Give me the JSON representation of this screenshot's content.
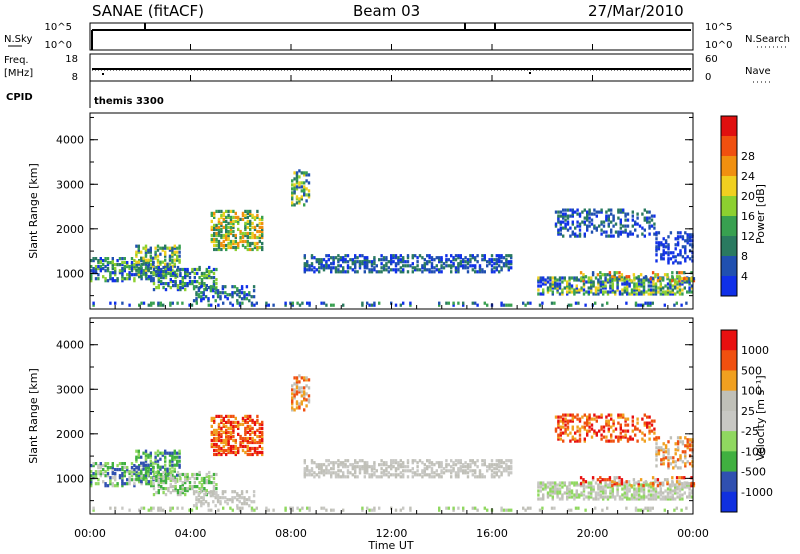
{
  "header": {
    "station": "SANAE (fitACF)",
    "beam": "Beam 03",
    "date": "27/Mar/2010"
  },
  "top_panels": {
    "nsky_label": "N.Sky",
    "nsky_ticks": [
      "10^5",
      "10^0"
    ],
    "nsearch_label": "N.Search",
    "freq_label_1": "Freq.",
    "freq_label_2": "[MHz]",
    "freq_ticks": [
      "18",
      "8"
    ],
    "nave_label": "Nave",
    "nave_ticks": [
      "60",
      "0"
    ],
    "cpid_label": "CPID",
    "cpid_value": "themis 3300"
  },
  "colors": {
    "power_scale": [
      "#1030e8",
      "#2050b0",
      "#2a7a60",
      "#38a050",
      "#8cd030",
      "#f0d020",
      "#f09010",
      "#f05010",
      "#e01010"
    ],
    "velocity_scale": [
      "#e81010",
      "#f05010",
      "#f0a020",
      "#c0c0b8",
      "#c8c8c4",
      "#90d860",
      "#40b040",
      "#3050b0",
      "#1030e0"
    ]
  },
  "chart_data": [
    {
      "type": "heatmap",
      "ylabel": "Slant Range [km]",
      "y_ticks": [
        "1000",
        "2000",
        "3000",
        "4000"
      ],
      "ylim": [
        200,
        4600
      ],
      "colorbar_label": "Power [dB]",
      "colorbar_ticks": [
        "4",
        "8",
        "12",
        "16",
        "20",
        "24",
        "28"
      ],
      "colorbar_range": [
        0,
        30
      ]
    },
    {
      "type": "heatmap",
      "ylabel": "Slant Range [km]",
      "y_ticks": [
        "1000",
        "2000",
        "3000",
        "4000"
      ],
      "ylim": [
        200,
        4600
      ],
      "xlabel": "Time UT",
      "x_ticks": [
        "00:00",
        "04:00",
        "08:00",
        "12:00",
        "16:00",
        "20:00",
        "00:00"
      ],
      "xlim": [
        0,
        24
      ],
      "colorbar_label": "Velocity [m s⁻¹]",
      "colorbar_ticks": [
        "1000",
        "500",
        "100",
        "25",
        "-25",
        "-100",
        "-500",
        "-1000"
      ]
    }
  ]
}
